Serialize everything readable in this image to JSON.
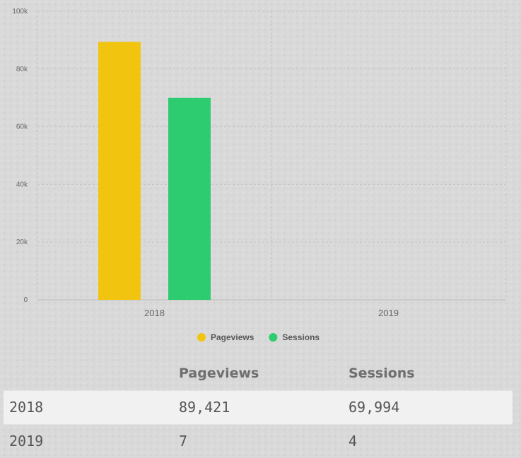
{
  "chart_data": {
    "type": "bar",
    "categories": [
      "2018",
      "2019"
    ],
    "series": [
      {
        "name": "Pageviews",
        "values": [
          89421,
          7
        ],
        "color": "#f1c40f"
      },
      {
        "name": "Sessions",
        "values": [
          69994,
          4
        ],
        "color": "#2ecc71"
      }
    ],
    "y_ticks": [
      "0",
      "20k",
      "40k",
      "60k",
      "80k",
      "100k"
    ],
    "ylim": [
      0,
      100000
    ],
    "grid": true,
    "legend": "bottom-center"
  },
  "table": {
    "headers": [
      "",
      "Pageviews",
      "Sessions"
    ],
    "rows": [
      [
        "2018",
        "89,421",
        "69,994"
      ],
      [
        "2019",
        "7",
        "4"
      ]
    ]
  }
}
